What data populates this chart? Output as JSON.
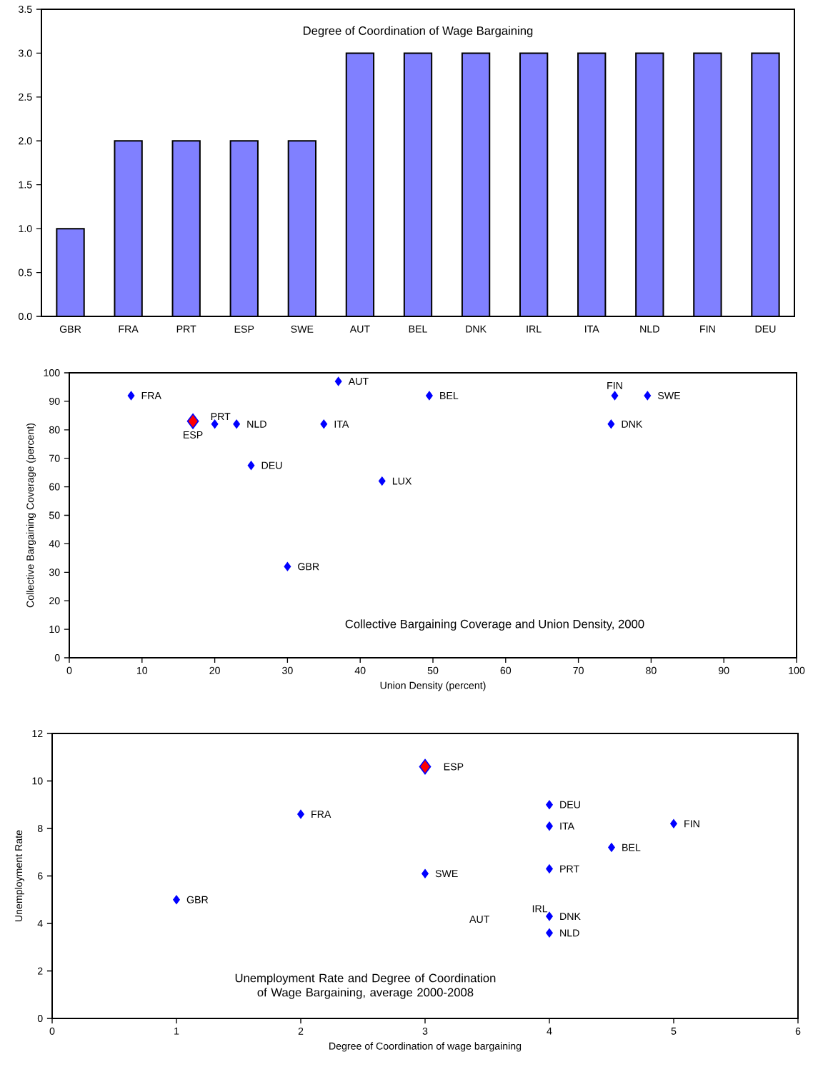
{
  "chart_data": [
    {
      "type": "bar",
      "title": "Degree of Coordination of Wage Bargaining",
      "categories": [
        "GBR",
        "FRA",
        "PRT",
        "ESP",
        "SWE",
        "AUT",
        "BEL",
        "DNK",
        "IRL",
        "ITA",
        "NLD",
        "FIN",
        "DEU"
      ],
      "values": [
        1,
        2,
        2,
        2,
        2,
        3,
        3,
        3,
        3,
        3,
        3,
        3,
        3
      ],
      "color": "#8080ff",
      "ylim": [
        0,
        3.5
      ],
      "yticks": [
        {
          "value": 0,
          "label": "0.0"
        },
        {
          "value": 0.5,
          "label": "0.5"
        },
        {
          "value": 1,
          "label": "1.0"
        },
        {
          "value": 1.5,
          "label": "1.5"
        },
        {
          "value": 2,
          "label": "2.0"
        },
        {
          "value": 2.5,
          "label": "2.5"
        },
        {
          "value": 3,
          "label": "3.0"
        },
        {
          "value": 3.5,
          "label": "3.5"
        }
      ]
    },
    {
      "type": "scatter",
      "xlabel": "Union Density (percent)",
      "ylabel": "Collective Bargaining Coverage (percent)",
      "xlim": [
        0,
        100
      ],
      "ylim": [
        0,
        100
      ],
      "xticks": [
        0,
        10,
        20,
        30,
        40,
        50,
        60,
        70,
        80,
        90,
        100
      ],
      "yticks": [
        0,
        10,
        20,
        30,
        40,
        50,
        60,
        70,
        80,
        90,
        100
      ],
      "marker": "diamond",
      "series": [
        {
          "color": "#0000ff",
          "x": [
            8.5,
            20,
            23,
            25,
            37,
            35,
            49.5,
            43,
            30,
            75,
            79.5,
            74.5
          ],
          "values": [
            92,
            82,
            82,
            67.5,
            97,
            82,
            92,
            62,
            32,
            92,
            92,
            82
          ]
        },
        {
          "color": "#ff0000",
          "x": [
            17
          ],
          "values": [
            83
          ]
        }
      ],
      "annotations": [
        "Collective Bargaining Coverage and Union Density, 2000",
        {
          "text": "FRA",
          "x": 8.5,
          "y": 92
        },
        {
          "text": "ESP",
          "x": 17,
          "y": 83
        },
        {
          "text": "PRT",
          "x": 20,
          "y": 82
        },
        {
          "text": "NLD",
          "x": 23,
          "y": 82
        },
        {
          "text": "DEU",
          "x": 25,
          "y": 67.5
        },
        {
          "text": "AUT",
          "x": 37,
          "y": 97
        },
        {
          "text": "ITA",
          "x": 35,
          "y": 82
        },
        {
          "text": "BEL",
          "x": 49.5,
          "y": 92
        },
        {
          "text": "LUX",
          "x": 43,
          "y": 62
        },
        {
          "text": "GBR",
          "x": 30,
          "y": 32
        },
        {
          "text": "FIN",
          "x": 75,
          "y": 92
        },
        {
          "text": "SWE",
          "x": 79.5,
          "y": 92
        },
        {
          "text": "DNK",
          "x": 74.5,
          "y": 82
        }
      ]
    },
    {
      "type": "scatter",
      "xlabel": "Degree of Coordination of wage bargaining",
      "ylabel": "Unemployment Rate",
      "xlim": [
        0,
        6
      ],
      "ylim": [
        0,
        12
      ],
      "xticks": [
        0,
        1,
        2,
        3,
        4,
        5,
        6
      ],
      "yticks": [
        0,
        2,
        4,
        6,
        8,
        10,
        12
      ],
      "marker": "diamond",
      "series": [
        {
          "color": "#0000ff",
          "x": [
            1,
            2,
            3,
            4,
            4,
            4,
            4,
            4,
            4.5,
            5
          ],
          "values": [
            5,
            8.6,
            6.1,
            9,
            8.1,
            6.3,
            4.3,
            3.6,
            7.2,
            8.2
          ]
        },
        {
          "color": "#ff0000",
          "x": [
            3
          ],
          "values": [
            10.6
          ]
        }
      ],
      "annotations": [
        "Unemployment Rate and Degree of Coordination of Wage Bargaining, average 2000-2008",
        "AUT",
        {
          "text": "GBR",
          "x": 1,
          "y": 5
        },
        {
          "text": "FRA",
          "x": 2,
          "y": 8.6
        },
        {
          "text": "ESP",
          "x": 3,
          "y": 10.6
        },
        {
          "text": "SWE",
          "x": 3,
          "y": 6.1
        },
        {
          "text": "DEU",
          "x": 4,
          "y": 9
        },
        {
          "text": "ITA",
          "x": 4,
          "y": 8.1
        },
        {
          "text": "PRT",
          "x": 4,
          "y": 6.3
        },
        {
          "text": "IRL",
          "x": 4,
          "y": 4.3
        },
        {
          "text": "DNK",
          "x": 4,
          "y": 4.3
        },
        {
          "text": "NLD",
          "x": 4,
          "y": 3.6
        },
        {
          "text": "BEL",
          "x": 4.5,
          "y": 7.2
        },
        {
          "text": "FIN",
          "x": 5,
          "y": 8.2
        }
      ]
    }
  ]
}
